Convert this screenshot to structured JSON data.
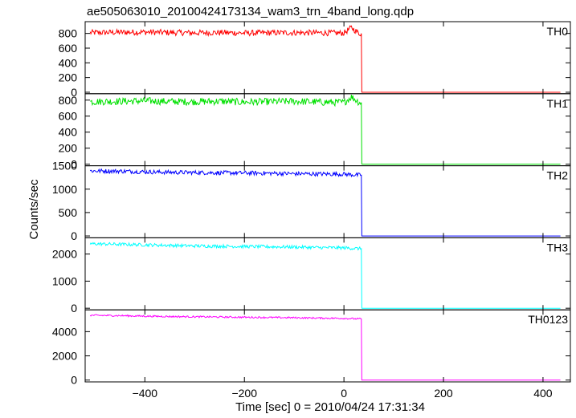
{
  "title": "ae505063010_20100424173134_wam3_trn_4band_long.qdp",
  "ylabel": "Counts/sec",
  "xlabel": "Time [sec] 0 = 2010/04/24 17:31:34",
  "chart_data": {
    "type": "line",
    "title": "ae505063010_20100424173134_wam3_trn_4band_long.qdp",
    "xlabel": "Time [sec] 0 = 2010/04/24 17:31:34",
    "ylabel": "Counts/sec",
    "xlim": [
      -520,
      455
    ],
    "x_ticks": [
      -400,
      -200,
      0,
      200,
      400
    ],
    "x_tick_labels": [
      "−400",
      "−200",
      "0",
      "200",
      "400"
    ],
    "series": [
      {
        "name": "TH0",
        "color": "#ff0000",
        "ylim": [
          -20,
          960
        ],
        "y_ticks": [
          0,
          200,
          400,
          600,
          800
        ],
        "y_tick_labels": [
          "0",
          "200",
          "400",
          "600",
          "800"
        ],
        "x": [
          -510,
          -450,
          -400,
          -350,
          -300,
          -250,
          -200,
          -150,
          -100,
          -50,
          0,
          15,
          30,
          35,
          36,
          40,
          100,
          200,
          300,
          435
        ],
        "y": [
          810,
          815,
          818,
          812,
          808,
          812,
          805,
          808,
          810,
          808,
          805,
          880,
          800,
          800,
          0,
          0,
          0,
          0,
          0,
          0
        ],
        "noise": 40
      },
      {
        "name": "TH1",
        "color": "#00e000",
        "ylim": [
          -20,
          880
        ],
        "y_ticks": [
          0,
          200,
          400,
          600,
          800
        ],
        "y_tick_labels": [
          "0",
          "200",
          "400",
          "600",
          "800"
        ],
        "x": [
          -510,
          -450,
          -400,
          -350,
          -300,
          -250,
          -200,
          -150,
          -100,
          -50,
          0,
          15,
          30,
          35,
          36,
          40,
          100,
          200,
          300,
          435
        ],
        "y": [
          780,
          785,
          790,
          782,
          780,
          785,
          775,
          780,
          785,
          775,
          770,
          840,
          775,
          770,
          0,
          0,
          0,
          0,
          0,
          0
        ],
        "noise": 45
      },
      {
        "name": "TH2",
        "color": "#0000ff",
        "ylim": [
          -40,
          1500
        ],
        "y_ticks": [
          0,
          500,
          1000,
          1500
        ],
        "y_tick_labels": [
          "0",
          "500",
          "1000",
          "1500"
        ],
        "x": [
          -510,
          -450,
          -400,
          -350,
          -300,
          -250,
          -200,
          -150,
          -100,
          -50,
          0,
          30,
          35,
          36,
          40,
          100,
          200,
          300,
          435
        ],
        "y": [
          1390,
          1385,
          1370,
          1360,
          1355,
          1350,
          1345,
          1340,
          1330,
          1325,
          1320,
          1300,
          1300,
          0,
          0,
          0,
          0,
          0,
          0
        ],
        "noise": 45
      },
      {
        "name": "TH3",
        "color": "#00ffff",
        "ylim": [
          -60,
          2600
        ],
        "y_ticks": [
          0,
          1000,
          2000
        ],
        "y_tick_labels": [
          "0",
          "1000",
          "2000"
        ],
        "x": [
          -510,
          -450,
          -400,
          -350,
          -300,
          -250,
          -200,
          -150,
          -100,
          -50,
          0,
          30,
          35,
          36,
          40,
          100,
          200,
          300,
          435
        ],
        "y": [
          2380,
          2360,
          2340,
          2320,
          2300,
          2290,
          2280,
          2270,
          2260,
          2240,
          2230,
          2200,
          2200,
          0,
          0,
          0,
          0,
          0,
          0
        ],
        "noise": 60
      },
      {
        "name": "TH0123",
        "color": "#ff00ff",
        "ylim": [
          -150,
          5800
        ],
        "y_ticks": [
          0,
          2000,
          4000
        ],
        "y_tick_labels": [
          "0",
          "2000",
          "4000"
        ],
        "x": [
          -510,
          -450,
          -400,
          -350,
          -300,
          -250,
          -200,
          -150,
          -100,
          -50,
          0,
          30,
          35,
          36,
          40,
          100,
          200,
          300,
          435
        ],
        "y": [
          5350,
          5320,
          5280,
          5250,
          5230,
          5210,
          5190,
          5170,
          5150,
          5120,
          5100,
          5050,
          5050,
          0,
          0,
          0,
          0,
          0,
          0
        ],
        "noise": 70
      }
    ]
  }
}
